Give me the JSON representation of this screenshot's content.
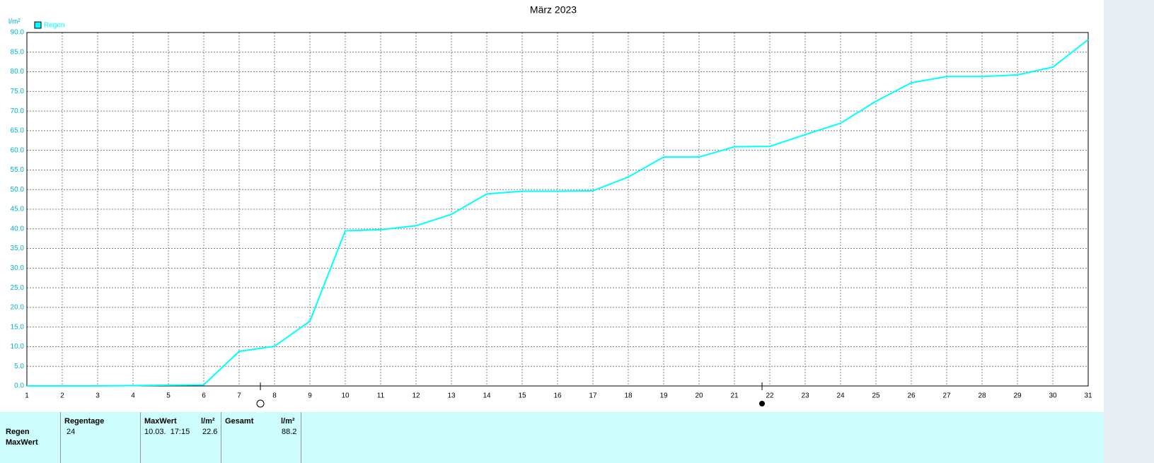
{
  "chart_data": {
    "type": "line",
    "title": "März 2023",
    "y_unit": "l/m²",
    "x": [
      1,
      2,
      3,
      4,
      5,
      6,
      7,
      8,
      9,
      10,
      11,
      12,
      13,
      14,
      15,
      16,
      17,
      18,
      19,
      20,
      21,
      22,
      23,
      24,
      25,
      26,
      27,
      28,
      29,
      30,
      31
    ],
    "series": [
      {
        "name": "Regen",
        "color": "#00ffff",
        "values": [
          0,
          0,
          0,
          0.1,
          0.2,
          0.3,
          8.8,
          10.1,
          16.5,
          39.5,
          39.8,
          40.8,
          43.7,
          48.9,
          49.6,
          49.6,
          49.7,
          53.2,
          58.3,
          58.3,
          60.9,
          61.0,
          64.0,
          66.9,
          72.5,
          77.2,
          78.8,
          78.8,
          79.2,
          81.2,
          88.2
        ]
      }
    ],
    "xlim": [
      1,
      31
    ],
    "xticks": [
      1,
      2,
      3,
      4,
      5,
      6,
      7,
      8,
      9,
      10,
      11,
      12,
      13,
      14,
      15,
      16,
      17,
      18,
      19,
      20,
      21,
      22,
      23,
      24,
      25,
      26,
      27,
      28,
      29,
      30,
      31
    ],
    "ylim": [
      0,
      90
    ],
    "yticks": [
      {
        "value": 0,
        "label": "0.0"
      },
      {
        "value": 5,
        "label": "5.0"
      },
      {
        "value": 10,
        "label": "10.0"
      },
      {
        "value": 15,
        "label": "15.0"
      },
      {
        "value": 20,
        "label": "20.0"
      },
      {
        "value": 25,
        "label": "25.0"
      },
      {
        "value": 30,
        "label": "30.0"
      },
      {
        "value": 35,
        "label": "35.0"
      },
      {
        "value": 40,
        "label": "40.0"
      },
      {
        "value": 45,
        "label": "45.0"
      },
      {
        "value": 50,
        "label": "50.0"
      },
      {
        "value": 55,
        "label": "55.0"
      },
      {
        "value": 60,
        "label": "60.0"
      },
      {
        "value": 65,
        "label": "65.0"
      },
      {
        "value": 70,
        "label": "70.0"
      },
      {
        "value": 75,
        "label": "75.0"
      },
      {
        "value": 80,
        "label": "80.0"
      },
      {
        "value": 85,
        "label": "85.0"
      },
      {
        "value": 90,
        "label": "90.0"
      }
    ],
    "grid": true,
    "legend": "top-left"
  },
  "table": {
    "header": {
      "regentage": "Regentage",
      "maxwert": "MaxWert",
      "maxwert_unit": "l/m²",
      "gesamt": "Gesamt",
      "gesamt_unit": "l/m²"
    },
    "rows": [
      {
        "label": "Regen",
        "regentage": "24",
        "maxwert_time": "10.03.  17:15",
        "maxwert": "22.6",
        "gesamt": "88.2"
      },
      {
        "label": "MaxWert"
      }
    ]
  }
}
